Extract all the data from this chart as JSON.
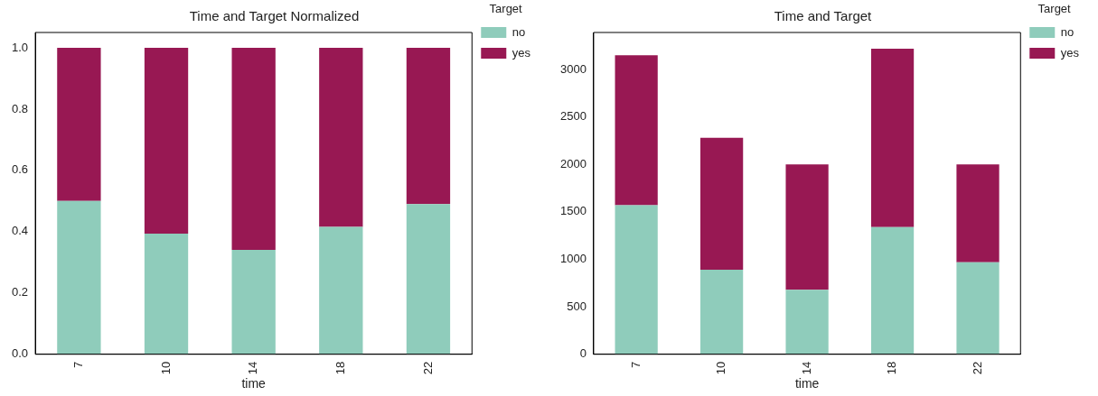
{
  "chart_data": [
    {
      "type": "bar",
      "title": "Time and Target Normalized",
      "xlabel": "time",
      "legend_title": "Target",
      "categories": [
        "7",
        "10",
        "14",
        "18",
        "22"
      ],
      "stacked": true,
      "legend": "top right",
      "grid": false,
      "ylim": [
        0,
        1.05
      ],
      "yticks": [
        {
          "value": 0,
          "label": "0.0"
        },
        {
          "value": 0.2,
          "label": "0.2"
        },
        {
          "value": 0.4,
          "label": "0.4"
        },
        {
          "value": 0.6,
          "label": "0.6"
        },
        {
          "value": 0.8,
          "label": "0.8"
        },
        {
          "value": 1,
          "label": "1.0"
        }
      ],
      "series": [
        {
          "name": "no",
          "color": "#8fccbb",
          "values": [
            0.5,
            0.394,
            0.341,
            0.416,
            0.49
          ]
        },
        {
          "name": "yes",
          "color": "#981853",
          "values": [
            0.5,
            0.606,
            0.659,
            0.584,
            0.51
          ]
        }
      ]
    },
    {
      "type": "bar",
      "title": "Time and Target",
      "xlabel": "time",
      "legend_title": "Target",
      "categories": [
        "7",
        "10",
        "14",
        "18",
        "22"
      ],
      "stacked": true,
      "legend": "top right",
      "grid": false,
      "ylim": [
        0,
        3390
      ],
      "yticks": [
        0,
        500,
        1000,
        1500,
        2000,
        2500,
        3000
      ],
      "series": [
        {
          "name": "no",
          "color": "#8fccbb",
          "values": [
            1570,
            890,
            680,
            1340,
            970
          ]
        },
        {
          "name": "yes",
          "color": "#981853",
          "values": [
            1580,
            1390,
            1320,
            1880,
            1030
          ]
        }
      ]
    }
  ]
}
